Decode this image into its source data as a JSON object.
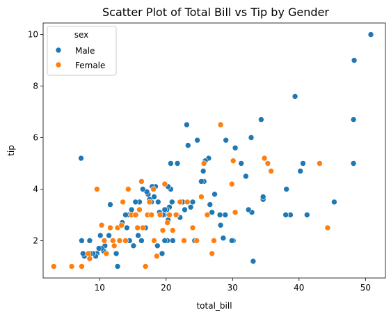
{
  "chart_data": {
    "type": "scatter",
    "title": "Scatter Plot of Total Bill vs Tip by Gender",
    "xlabel": "total_bill",
    "ylabel": "tip",
    "xlim": [
      1.5,
      53
    ],
    "ylim": [
      0.55,
      10.45
    ],
    "xticks": [
      10,
      20,
      30,
      40,
      50
    ],
    "yticks": [
      2,
      4,
      6,
      8,
      10
    ],
    "grid": false,
    "legend": {
      "title": "sex",
      "placement": "top-left"
    },
    "series": [
      {
        "name": "Male",
        "color": "#1f77b4",
        "points": [
          [
            50.8,
            10.0
          ],
          [
            48.3,
            9.0
          ],
          [
            48.2,
            6.7
          ],
          [
            48.2,
            5.0
          ],
          [
            45.3,
            3.5
          ],
          [
            41.2,
            3.0
          ],
          [
            40.6,
            5.0
          ],
          [
            40.2,
            4.7
          ],
          [
            39.4,
            7.6
          ],
          [
            38.7,
            3.0
          ],
          [
            38.1,
            4.0
          ],
          [
            38.0,
            3.0
          ],
          [
            34.8,
            5.2
          ],
          [
            34.6,
            3.6
          ],
          [
            34.6,
            3.7
          ],
          [
            34.3,
            6.7
          ],
          [
            33.1,
            1.2
          ],
          [
            32.8,
            6.0
          ],
          [
            32.9,
            3.1
          ],
          [
            32.4,
            3.2
          ],
          [
            32.0,
            4.5
          ],
          [
            31.3,
            5.0
          ],
          [
            30.4,
            5.6
          ],
          [
            30.1,
            2.0
          ],
          [
            29.9,
            2.0
          ],
          [
            29.0,
            5.9
          ],
          [
            28.9,
            3.0
          ],
          [
            28.6,
            2.1
          ],
          [
            28.2,
            2.6
          ],
          [
            28.1,
            3.0
          ],
          [
            27.3,
            3.8
          ],
          [
            26.9,
            3.1
          ],
          [
            26.6,
            3.4
          ],
          [
            26.4,
            5.2
          ],
          [
            25.9,
            5.1
          ],
          [
            25.7,
            4.3
          ],
          [
            25.6,
            4.7
          ],
          [
            25.3,
            4.3
          ],
          [
            24.7,
            5.9
          ],
          [
            24.6,
            2.0
          ],
          [
            24.3,
            2.0
          ],
          [
            24.0,
            3.5
          ],
          [
            23.7,
            3.3
          ],
          [
            23.3,
            5.7
          ],
          [
            23.1,
            6.5
          ],
          [
            22.8,
            3.2
          ],
          [
            22.7,
            2.0
          ],
          [
            22.5,
            3.5
          ],
          [
            22.1,
            2.9
          ],
          [
            21.7,
            5.0
          ],
          [
            21.6,
            3.0
          ],
          [
            21.0,
            2.0
          ],
          [
            20.9,
            3.5
          ],
          [
            20.7,
            5.0
          ],
          [
            20.7,
            4.0
          ],
          [
            20.5,
            3.3
          ],
          [
            20.3,
            2.8
          ],
          [
            20.3,
            4.1
          ],
          [
            20.2,
            2.0
          ],
          [
            20.1,
            3.2
          ],
          [
            19.8,
            3.2
          ],
          [
            19.8,
            2.0
          ],
          [
            19.7,
            3.0
          ],
          [
            19.5,
            3.0
          ],
          [
            19.4,
            1.5
          ],
          [
            19.0,
            3.1
          ],
          [
            18.8,
            3.5
          ],
          [
            18.7,
            1.8
          ],
          [
            18.4,
            4.1
          ],
          [
            18.2,
            2.0
          ],
          [
            18.2,
            3.7
          ],
          [
            17.9,
            4.1
          ],
          [
            17.8,
            3.5
          ],
          [
            17.5,
            3.6
          ],
          [
            17.3,
            3.8
          ],
          [
            17.1,
            3.9
          ],
          [
            16.9,
            2.5
          ],
          [
            16.5,
            4.0
          ],
          [
            16.3,
            2.0
          ],
          [
            16.0,
            3.5
          ],
          [
            15.8,
            2.2
          ],
          [
            15.5,
            3.0
          ],
          [
            15.4,
            3.5
          ],
          [
            15.1,
            1.8
          ],
          [
            14.8,
            3.2
          ],
          [
            14.5,
            2.0
          ],
          [
            14.3,
            3.0
          ],
          [
            14.1,
            2.5
          ],
          [
            13.9,
            3.0
          ],
          [
            13.4,
            2.7
          ],
          [
            13.0,
            2.0
          ],
          [
            12.7,
            1.0
          ],
          [
            12.5,
            1.5
          ],
          [
            12.0,
            2.0
          ],
          [
            11.6,
            3.4
          ],
          [
            11.4,
            2.2
          ],
          [
            10.8,
            1.8
          ],
          [
            10.6,
            1.6
          ],
          [
            10.3,
            1.7
          ],
          [
            10.1,
            2.2
          ],
          [
            9.9,
            1.7
          ],
          [
            9.6,
            1.5
          ],
          [
            9.4,
            1.4
          ],
          [
            9.0,
            1.5
          ],
          [
            8.6,
            1.5
          ],
          [
            8.5,
            2.0
          ],
          [
            7.7,
            1.4
          ],
          [
            7.5,
            1.5
          ],
          [
            7.3,
            2.0
          ],
          [
            7.2,
            5.2
          ]
        ]
      },
      {
        "name": "Female",
        "color": "#ff7f0e",
        "points": [
          [
            3.1,
            1.0
          ],
          [
            5.8,
            1.0
          ],
          [
            7.3,
            1.0
          ],
          [
            8.3,
            1.5
          ],
          [
            8.5,
            1.3
          ],
          [
            9.6,
            4.0
          ],
          [
            10.3,
            2.6
          ],
          [
            10.7,
            2.0
          ],
          [
            11.0,
            1.5
          ],
          [
            11.6,
            2.5
          ],
          [
            12.0,
            2.0
          ],
          [
            12.2,
            1.8
          ],
          [
            12.7,
            2.5
          ],
          [
            13.0,
            2.0
          ],
          [
            13.3,
            2.6
          ],
          [
            13.5,
            3.5
          ],
          [
            13.9,
            2.0
          ],
          [
            14.3,
            4.0
          ],
          [
            14.8,
            3.0
          ],
          [
            15.4,
            3.0
          ],
          [
            15.7,
            2.5
          ],
          [
            16.0,
            3.2
          ],
          [
            16.3,
            4.3
          ],
          [
            16.5,
            2.5
          ],
          [
            16.9,
            1.0
          ],
          [
            17.2,
            3.0
          ],
          [
            17.5,
            3.5
          ],
          [
            17.8,
            3.0
          ],
          [
            18.1,
            4.0
          ],
          [
            18.2,
            2.0
          ],
          [
            18.6,
            1.4
          ],
          [
            19.1,
            3.0
          ],
          [
            19.5,
            2.4
          ],
          [
            19.8,
            4.2
          ],
          [
            20.2,
            2.7
          ],
          [
            20.5,
            3.0
          ],
          [
            21.0,
            2.4
          ],
          [
            21.5,
            3.0
          ],
          [
            22.1,
            3.5
          ],
          [
            22.7,
            2.0
          ],
          [
            23.2,
            3.5
          ],
          [
            24.0,
            2.5
          ],
          [
            24.6,
            2.0
          ],
          [
            25.3,
            3.7
          ],
          [
            25.7,
            5.0
          ],
          [
            26.2,
            3.0
          ],
          [
            26.9,
            1.5
          ],
          [
            27.2,
            2.0
          ],
          [
            28.2,
            6.5
          ],
          [
            29.9,
            4.2
          ],
          [
            30.1,
            5.1
          ],
          [
            30.4,
            3.1
          ],
          [
            34.8,
            5.2
          ],
          [
            35.3,
            5.0
          ],
          [
            35.8,
            4.7
          ],
          [
            43.1,
            5.0
          ],
          [
            44.3,
            2.5
          ]
        ]
      }
    ]
  }
}
